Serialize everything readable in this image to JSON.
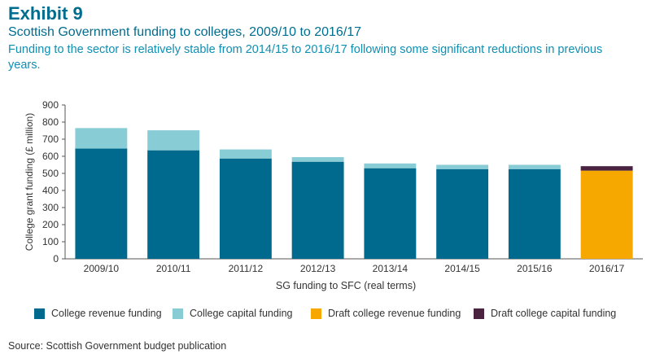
{
  "header": {
    "exhibit": "Exhibit 9",
    "title": "Scottish Government funding to colleges, 2009/10 to 2016/17",
    "subtitle": "Funding to the sector is relatively stable from 2014/15 to 2016/17 following some significant reductions in previous years."
  },
  "source": "Source: Scottish Government budget publication",
  "chart_data": {
    "type": "bar",
    "stacked": true,
    "categories": [
      "2009/10",
      "2010/11",
      "2011/12",
      "2012/13",
      "2013/14",
      "2014/15",
      "2015/16",
      "2016/17"
    ],
    "series": [
      {
        "name": "College revenue funding",
        "color": "#006a8e",
        "values": [
          645,
          635,
          587,
          568,
          530,
          525,
          525,
          null
        ]
      },
      {
        "name": "College capital funding",
        "color": "#88ccd5",
        "values": [
          120,
          117,
          53,
          27,
          28,
          25,
          25,
          null
        ]
      },
      {
        "name": "Draft college revenue funding",
        "color": "#f7a800",
        "values": [
          null,
          null,
          null,
          null,
          null,
          null,
          null,
          516
        ]
      },
      {
        "name": "Draft college capital funding",
        "color": "#4a2341",
        "values": [
          null,
          null,
          null,
          null,
          null,
          null,
          null,
          26
        ]
      }
    ],
    "xlabel": "SG funding to SFC (real terms)",
    "ylabel": "College grant funding (£ million)",
    "ylim": [
      0,
      900
    ],
    "yticks": [
      0,
      100,
      200,
      300,
      400,
      500,
      600,
      700,
      800,
      900
    ],
    "grid": false,
    "legend_position": "bottom"
  }
}
